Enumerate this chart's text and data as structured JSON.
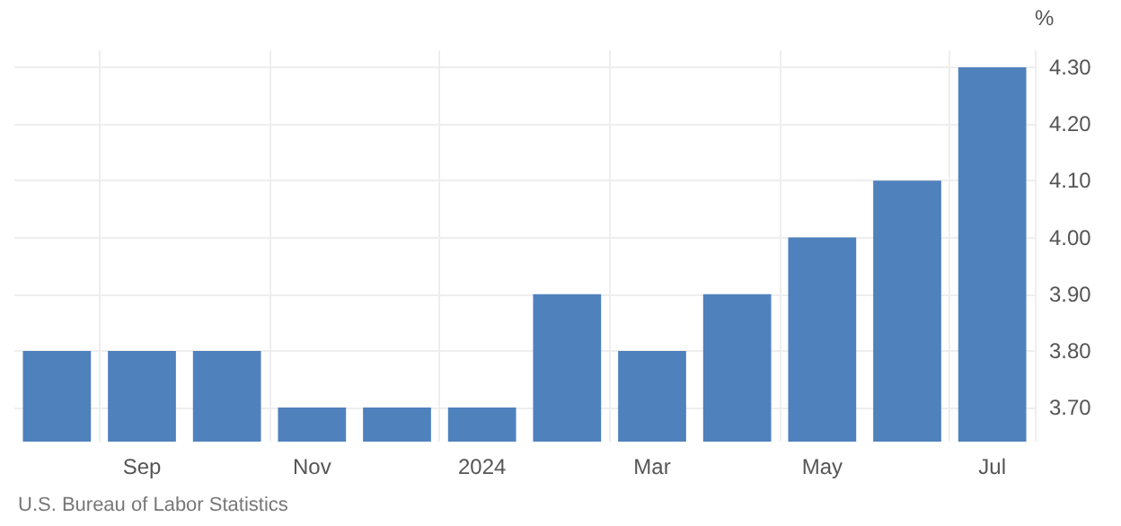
{
  "chart_data": {
    "type": "bar",
    "ylabel": "%",
    "categories": [
      null,
      "Sep",
      null,
      "Nov",
      null,
      "2024",
      null,
      "Mar",
      null,
      "May",
      null,
      "Jul"
    ],
    "values": [
      3.8,
      3.8,
      3.8,
      3.7,
      3.7,
      3.7,
      3.9,
      3.8,
      3.9,
      4.0,
      4.1,
      4.3
    ],
    "color": "#4f81bd",
    "ylim": [
      3.64,
      4.33
    ],
    "yticks": [
      {
        "value": 3.7,
        "label": "3.70"
      },
      {
        "value": 3.8,
        "label": "3.80"
      },
      {
        "value": 3.9,
        "label": "3.90"
      },
      {
        "value": 4.0,
        "label": "4.00"
      },
      {
        "value": 4.1,
        "label": "4.10"
      },
      {
        "value": 4.2,
        "label": "4.20"
      },
      {
        "value": 4.3,
        "label": "4.30"
      }
    ],
    "grid": true,
    "annotations": [
      "U.S. Bureau of Labor Statistics"
    ]
  }
}
